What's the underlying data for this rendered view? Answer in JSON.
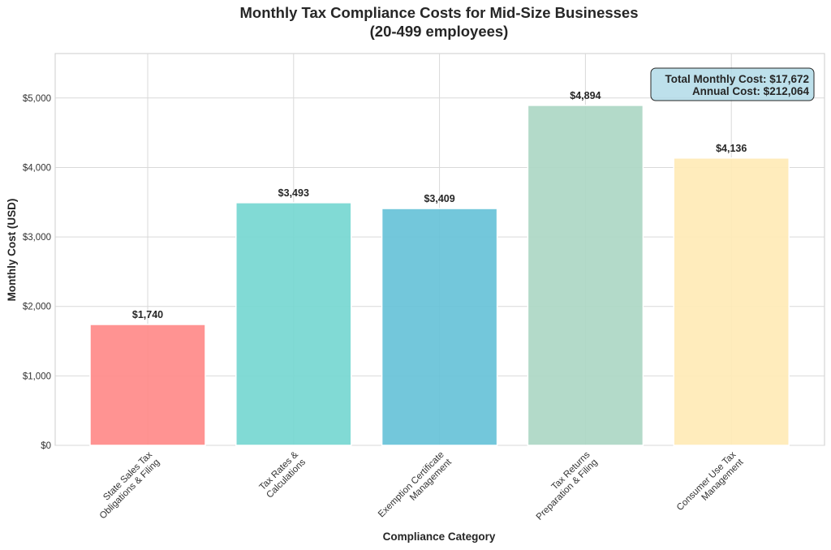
{
  "chart_data": {
    "type": "bar",
    "title": "Monthly Tax Compliance Costs for Mid-Size Businesses",
    "subtitle": "(20-499 employees)",
    "xlabel": "Compliance Category",
    "ylabel": "Monthly Cost (USD)",
    "categories": [
      [
        "State Sales Tax",
        "Obligations & Filing"
      ],
      [
        "Tax Rates &",
        "Calculations"
      ],
      [
        "Exemption Certificate",
        "Management"
      ],
      [
        "Tax Returns",
        "Preparation & Filing"
      ],
      [
        "Consumer Use Tax",
        "Management"
      ]
    ],
    "values": [
      1740,
      3493,
      3409,
      4894,
      4136
    ],
    "value_labels": [
      "$1,740",
      "$3,493",
      "$3,409",
      "$4,894",
      "$4,136"
    ],
    "colors": [
      "#ff8a89",
      "#76d7d1",
      "#67c2d8",
      "#acd7c4",
      "#ffeab6"
    ],
    "ylim": [
      0,
      5640
    ],
    "yticks": [
      0,
      1000,
      2000,
      3000,
      4000,
      5000
    ],
    "ytick_labels": [
      "$0",
      "$1,000",
      "$2,000",
      "$3,000",
      "$4,000",
      "$5,000"
    ],
    "grid": true,
    "annotation": {
      "lines": [
        "Total Monthly Cost: $17,672",
        "Annual Cost: $212,064"
      ],
      "placement": "top-right",
      "background": "#add8e6"
    }
  }
}
